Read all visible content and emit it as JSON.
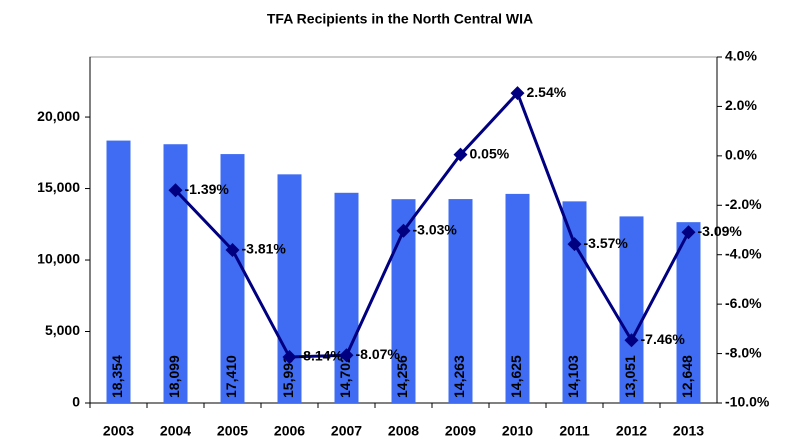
{
  "chart_data": {
    "type": "bar-line",
    "title": "TFA Recipients in the North Central WIA",
    "categories": [
      "2003",
      "2004",
      "2005",
      "2006",
      "2007",
      "2008",
      "2009",
      "2010",
      "2011",
      "2012",
      "2013"
    ],
    "series": [
      {
        "type": "bar",
        "color": "#3f6cf2",
        "values": [
          18354,
          18099,
          17410,
          15993,
          14702,
          14256,
          14263,
          14625,
          14103,
          13051,
          12648
        ],
        "value_labels": [
          "18,354",
          "18,099",
          "17,410",
          "15,993",
          "14,702",
          "14,256",
          "14,263",
          "14,625",
          "14,103",
          "13,051",
          "12,648"
        ]
      },
      {
        "type": "line",
        "axis": "y2",
        "color": "#000080",
        "values": [
          null,
          -1.39,
          -3.81,
          -8.14,
          -8.07,
          -3.03,
          0.05,
          2.54,
          -3.57,
          -7.46,
          -3.09
        ],
        "value_labels": [
          null,
          "-1.39%",
          "-3.81%",
          "-8.14%",
          "-8.07%",
          "-3.03%",
          "0.05%",
          "2.54%",
          "-3.57%",
          "-7.46%",
          "-3.09%"
        ]
      }
    ],
    "ylim": [
      0,
      24200
    ],
    "yticks": [
      0,
      {
        "value": 5000,
        "label": "5,000"
      },
      {
        "value": 10000,
        "label": "10,000"
      },
      {
        "value": 15000,
        "label": "15,000"
      },
      {
        "value": 20000,
        "label": "20,000"
      }
    ],
    "y2lim": [
      -10,
      4
    ],
    "y2ticks": [
      {
        "value": -10,
        "label": "-10.0%"
      },
      {
        "value": -8,
        "label": "-8.0%"
      },
      {
        "value": -6,
        "label": "-6.0%"
      },
      {
        "value": -4,
        "label": "-4.0%"
      },
      {
        "value": -2,
        "label": "-2.0%"
      },
      {
        "value": 0,
        "label": "0.0%"
      },
      {
        "value": 2,
        "label": "2.0%"
      },
      {
        "value": 4,
        "label": "4.0%"
      }
    ]
  }
}
